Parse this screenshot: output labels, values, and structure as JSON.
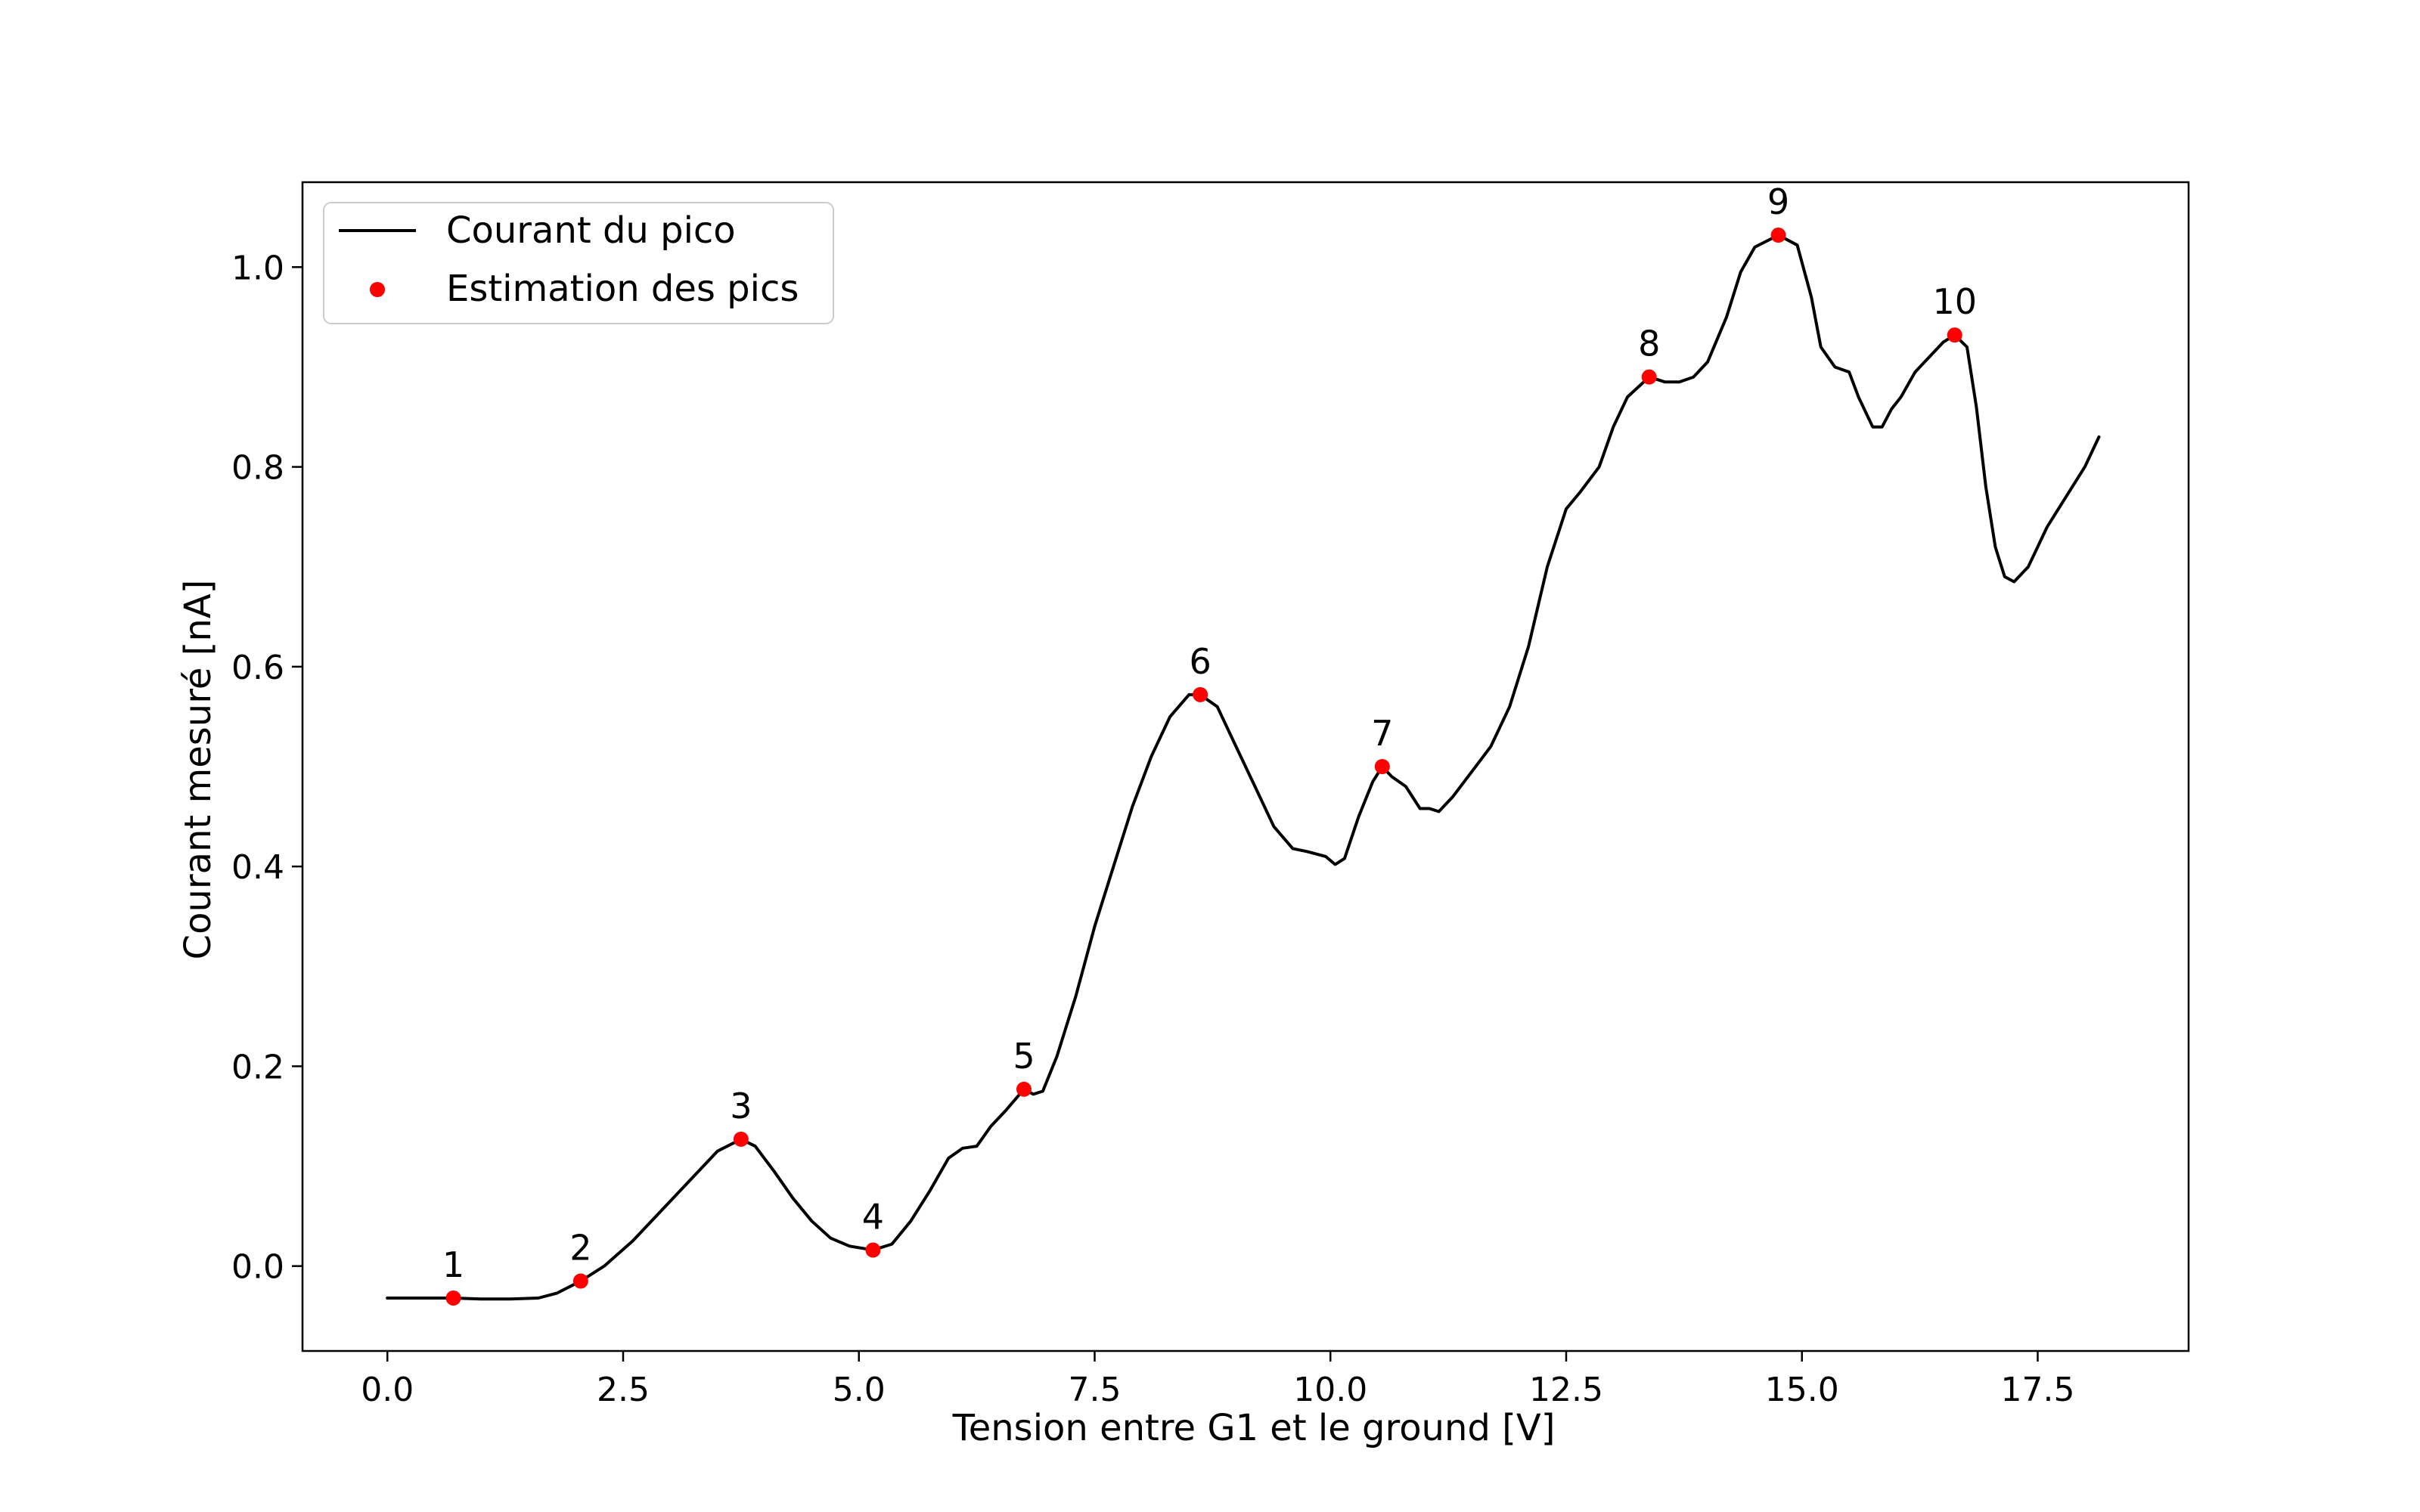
{
  "chart_data": {
    "type": "line",
    "xlabel": "Tension entre G1 et le ground [V]",
    "ylabel": "Courant mesuré [nA]",
    "xlim": [
      -0.9,
      19.1
    ],
    "ylim": [
      -0.085,
      1.085
    ],
    "xticks": [
      0.0,
      2.5,
      5.0,
      7.5,
      10.0,
      12.5,
      15.0,
      17.5
    ],
    "xtick_labels": [
      "0.0",
      "2.5",
      "5.0",
      "7.5",
      "10.0",
      "12.5",
      "15.0",
      "17.5"
    ],
    "yticks": [
      0.0,
      0.2,
      0.4,
      0.6,
      0.8,
      1.0
    ],
    "ytick_labels": [
      "0.0",
      "0.2",
      "0.4",
      "0.6",
      "0.8",
      "1.0"
    ],
    "grid": false,
    "legend_position": "top-left",
    "series": [
      {
        "name": "Courant du pico",
        "kind": "line",
        "color": "#000000",
        "x": [
          0.0,
          0.3,
          0.7,
          1.0,
          1.3,
          1.6,
          1.8,
          2.05,
          2.3,
          2.6,
          2.9,
          3.2,
          3.5,
          3.75,
          3.9,
          4.1,
          4.3,
          4.5,
          4.7,
          4.9,
          5.15,
          5.35,
          5.55,
          5.75,
          5.95,
          6.1,
          6.25,
          6.4,
          6.55,
          6.75,
          6.85,
          6.95,
          7.1,
          7.3,
          7.5,
          7.7,
          7.9,
          8.1,
          8.3,
          8.5,
          8.62,
          8.8,
          9.0,
          9.2,
          9.4,
          9.6,
          9.75,
          9.95,
          10.05,
          10.15,
          10.3,
          10.45,
          10.55,
          10.65,
          10.8,
          10.95,
          11.05,
          11.15,
          11.3,
          11.5,
          11.7,
          11.9,
          12.1,
          12.3,
          12.5,
          12.65,
          12.85,
          13.0,
          13.15,
          13.38,
          13.55,
          13.7,
          13.85,
          14.0,
          14.2,
          14.35,
          14.5,
          14.75,
          14.95,
          15.1,
          15.2,
          15.35,
          15.5,
          15.6,
          15.75,
          15.85,
          15.95,
          16.05,
          16.2,
          16.35,
          16.5,
          16.62,
          16.75,
          16.85,
          16.95,
          17.05,
          17.15,
          17.25,
          17.4,
          17.6,
          17.8,
          18.0,
          18.15
        ],
        "y": [
          -0.032,
          -0.032,
          -0.032,
          -0.033,
          -0.033,
          -0.032,
          -0.027,
          -0.015,
          0.0,
          0.025,
          0.055,
          0.085,
          0.115,
          0.127,
          0.12,
          0.095,
          0.068,
          0.045,
          0.028,
          0.02,
          0.016,
          0.022,
          0.045,
          0.075,
          0.108,
          0.118,
          0.12,
          0.14,
          0.155,
          0.177,
          0.172,
          0.175,
          0.21,
          0.27,
          0.34,
          0.4,
          0.46,
          0.51,
          0.55,
          0.572,
          0.572,
          0.56,
          0.52,
          0.48,
          0.44,
          0.418,
          0.415,
          0.41,
          0.402,
          0.408,
          0.45,
          0.485,
          0.5,
          0.49,
          0.48,
          0.458,
          0.458,
          0.455,
          0.47,
          0.495,
          0.52,
          0.56,
          0.62,
          0.7,
          0.758,
          0.775,
          0.8,
          0.84,
          0.87,
          0.89,
          0.885,
          0.885,
          0.89,
          0.905,
          0.95,
          0.995,
          1.02,
          1.032,
          1.022,
          0.97,
          0.92,
          0.9,
          0.895,
          0.87,
          0.84,
          0.84,
          0.858,
          0.87,
          0.895,
          0.91,
          0.925,
          0.932,
          0.92,
          0.86,
          0.78,
          0.72,
          0.69,
          0.685,
          0.7,
          0.74,
          0.77,
          0.8,
          0.83
        ]
      },
      {
        "name": "Estimation des pics",
        "kind": "scatter",
        "color": "#ff0000",
        "x": [
          0.7,
          2.05,
          3.75,
          5.15,
          6.75,
          8.62,
          10.55,
          13.38,
          14.75,
          16.62
        ],
        "y": [
          -0.032,
          -0.015,
          0.127,
          0.016,
          0.177,
          0.572,
          0.5,
          0.89,
          1.032,
          0.932
        ],
        "labels": [
          "1",
          "2",
          "3",
          "4",
          "5",
          "6",
          "7",
          "8",
          "9",
          "10"
        ]
      }
    ]
  }
}
